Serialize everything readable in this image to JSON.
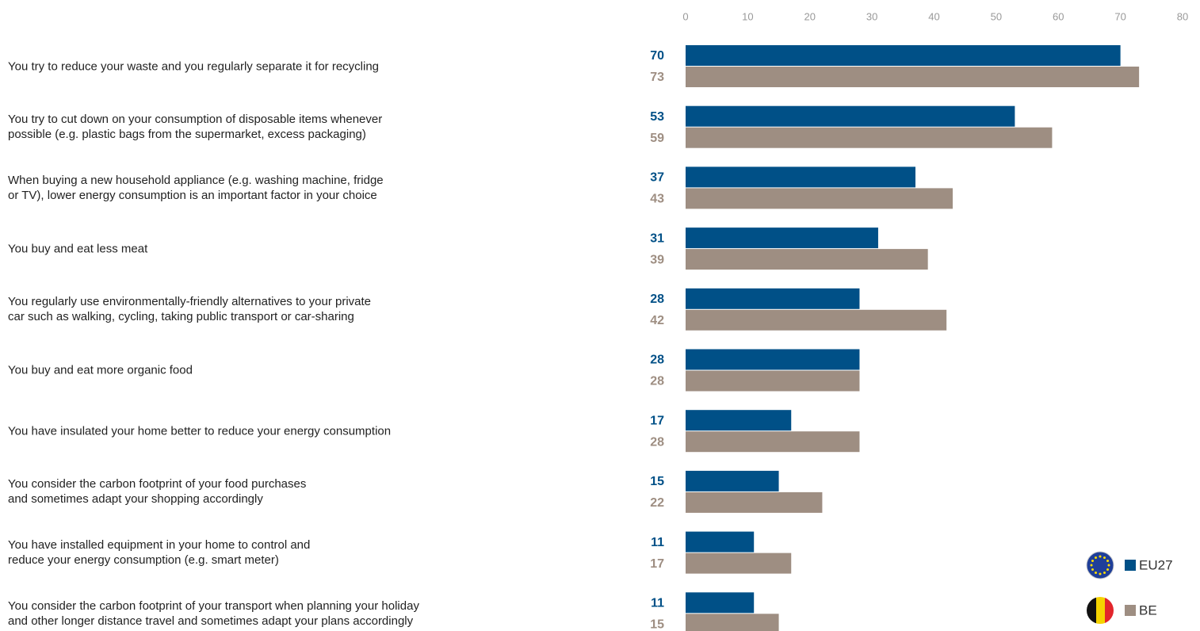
{
  "chart_data": {
    "type": "bar",
    "orientation": "horizontal",
    "categories": [
      "You try to reduce your waste and you regularly separate it for recycling",
      "You try to cut down on your consumption of disposable items whenever\npossible (e.g. plastic bags from the supermarket, excess packaging)",
      "When buying a new household appliance (e.g. washing machine, fridge\nor TV), lower energy consumption is an important factor in your choice",
      "You buy and eat less meat",
      "You regularly use environmentally-friendly alternatives to your private\ncar such as walking, cycling, taking public transport or car-sharing",
      "You buy and eat more organic food",
      "You have insulated your home better to reduce your energy consumption",
      "You consider the carbon footprint of your food purchases\nand sometimes adapt your shopping accordingly",
      "You have installed equipment in your home to control and\nreduce your energy consumption (e.g. smart meter)",
      "You consider the carbon footprint of your transport when planning your holiday\nand other longer distance travel and sometimes adapt your plans accordingly"
    ],
    "series": [
      {
        "name": "EU27",
        "color": "#005087",
        "values": [
          70,
          53,
          37,
          31,
          28,
          28,
          17,
          15,
          11,
          11
        ]
      },
      {
        "name": "BE",
        "color": "#9e8e82",
        "values": [
          73,
          59,
          43,
          39,
          42,
          28,
          28,
          22,
          17,
          15
        ]
      }
    ],
    "xlim": [
      0,
      80
    ],
    "xticks": [
      0,
      10,
      20,
      30,
      40,
      50,
      60,
      70,
      80
    ],
    "grid": false,
    "legend": "lower right"
  }
}
